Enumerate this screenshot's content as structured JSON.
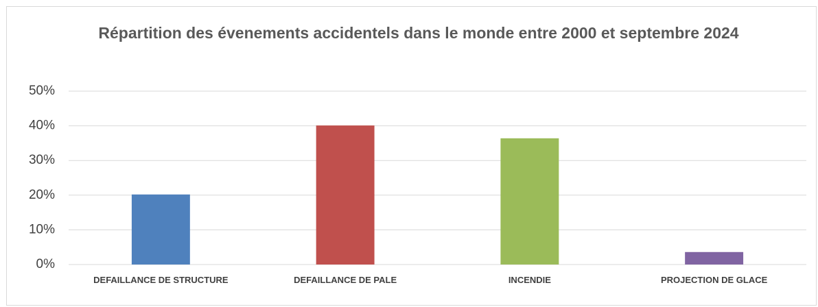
{
  "chart_data": {
    "type": "bar",
    "title": "Répartition des évenements accidentels dans le monde entre 2000 et septembre 2024",
    "categories": [
      "DEFAILLANCE DE STRUCTURE",
      "DEFAILLANCE DE PALE",
      "INCENDIE",
      "PROJECTION DE GLACE"
    ],
    "values": [
      20.2,
      40.1,
      36.4,
      3.6
    ],
    "colors": [
      "#4f81bd",
      "#c0504d",
      "#9bbb59",
      "#8064a2"
    ],
    "ylim": [
      0,
      50
    ],
    "yticks": [
      {
        "value": 0,
        "label": "0%"
      },
      {
        "value": 10,
        "label": "10%"
      },
      {
        "value": 20,
        "label": "20%"
      },
      {
        "value": 30,
        "label": "30%"
      },
      {
        "value": 40,
        "label": "40%"
      },
      {
        "value": 50,
        "label": "50%"
      }
    ],
    "grid": true
  }
}
